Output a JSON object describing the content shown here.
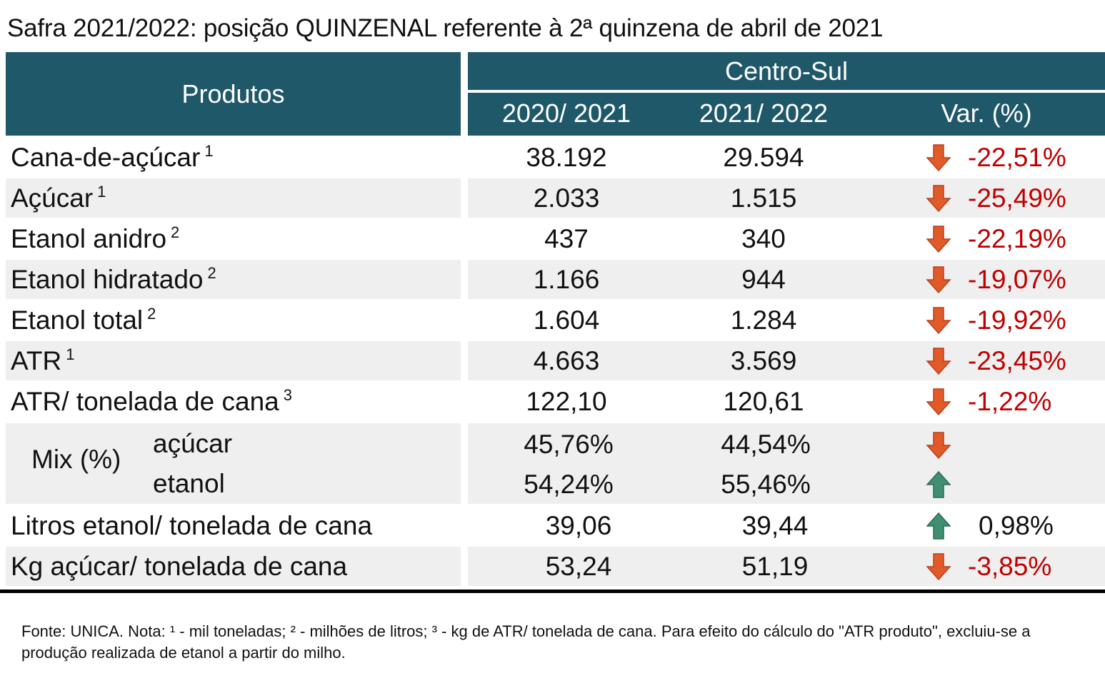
{
  "title": "Safra 2021/2022: posição QUINZENAL referente à 2ª quinzena de abril de 2021",
  "header": {
    "produtos": "Produtos",
    "region": "Centro-Sul",
    "col1": "2020/ 2021",
    "col2": "2021/ 2022",
    "col3": "Var. (%)"
  },
  "rows": [
    {
      "label": "Cana-de-açúcar",
      "sup": "1",
      "v1": "38.192",
      "v2": "29.594",
      "var": "-22,51%",
      "trend": "down"
    },
    {
      "label": "Açúcar",
      "sup": "1",
      "v1": "2.033",
      "v2": "1.515",
      "var": "-25,49%",
      "trend": "down"
    },
    {
      "label": "Etanol anidro",
      "sup": "2",
      "v1": "437",
      "v2": "340",
      "var": "-22,19%",
      "trend": "down"
    },
    {
      "label": "Etanol hidratado",
      "sup": "2",
      "v1": "1.166",
      "v2": "944",
      "var": "-19,07%",
      "trend": "down"
    },
    {
      "label": "Etanol total",
      "sup": "2",
      "v1": "1.604",
      "v2": "1.284",
      "var": "-19,92%",
      "trend": "down"
    },
    {
      "label": "ATR",
      "sup": "1",
      "v1": "4.663",
      "v2": "3.569",
      "var": "-23,45%",
      "trend": "down"
    },
    {
      "label": "ATR/ tonelada de cana",
      "sup": "3",
      "v1": "122,10",
      "v2": "120,61",
      "var": "-1,22%",
      "trend": "down"
    }
  ],
  "mix": {
    "label": "Mix (%)",
    "acucar": {
      "label": "açúcar",
      "v1": "45,76%",
      "v2": "44,54%",
      "trend": "down"
    },
    "etanol": {
      "label": "etanol",
      "v1": "54,24%",
      "v2": "55,46%",
      "trend": "up"
    }
  },
  "rows2": [
    {
      "label": "Litros etanol/ tonelada de cana",
      "v1": "39,06",
      "v2": "39,44",
      "var": "0,98%",
      "trend": "up"
    },
    {
      "label": "Kg açúcar/ tonelada de cana",
      "v1": "53,24",
      "v2": "51,19",
      "var": "-3,85%",
      "trend": "down"
    }
  ],
  "footnote": "Fonte: UNICA. Nota: ¹ - mil toneladas; ² - milhões de litros; ³ - kg de ATR/ tonelada de cana. Para efeito do cálculo do \"ATR produto\", excluiu-se a produção realizada de etanol a partir do milho.",
  "colors": {
    "header": "#1f5869",
    "shade": "#efefef",
    "negative": "#c00000",
    "down_arrow": "#e05a2a",
    "up_arrow": "#3f8f70"
  }
}
